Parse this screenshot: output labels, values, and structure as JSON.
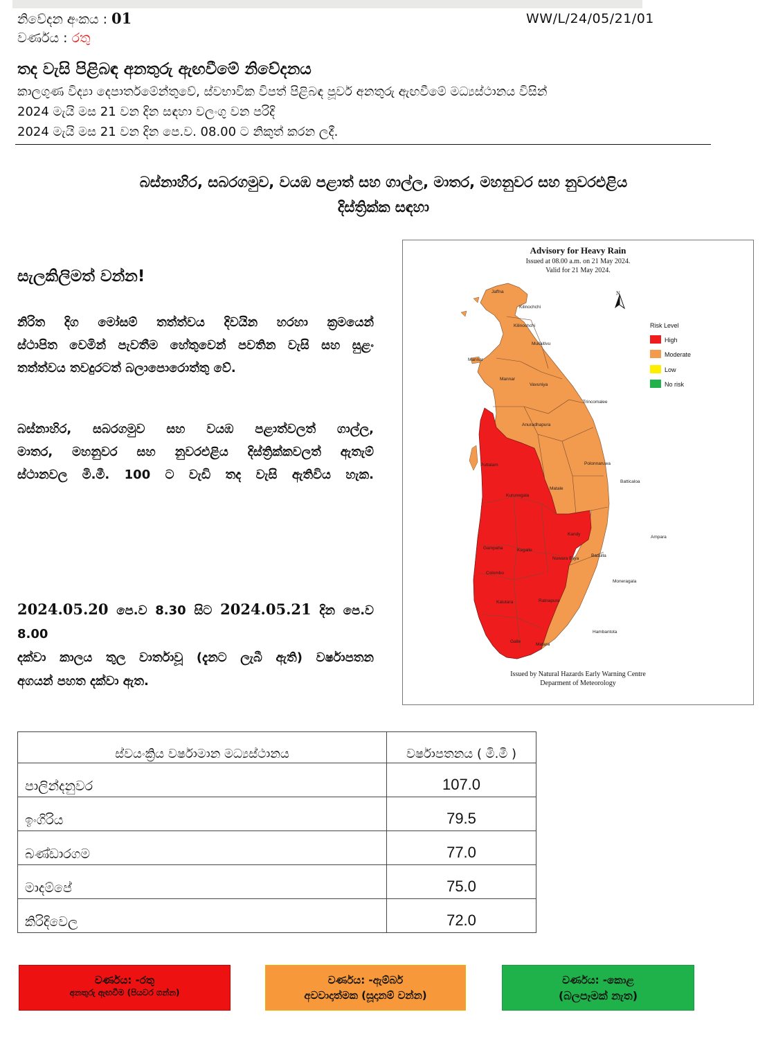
{
  "header": {
    "notice_label": "නිවේදන අංකය : ",
    "notice_number": "01",
    "color_label": "වර්ණය : ",
    "color_value": "රතු",
    "reference": "WW/L/24/05/21/01"
  },
  "title": "තද වැසි පිළිබඳ අනතුරු ඇඟවීමේ නිවේදනය",
  "subtitle_lines": [
    "කාලගුණ විද්‍යා දෙපාර්තමේන්තුවේ, ස්වභාවික විපත් පිළිබඳ  පූර්ව අනතුරු ඇඟවීමේ මධ්‍යස්ථානය විසින්",
    "2024 මැයි මස 21 වන දින සඳහා වලංගු වන පරිදි",
    "2024 මැයි මස 21 වන දින පෙ.ව. 08.00 ට නිකුත් කරන ලදී."
  ],
  "districts_line1": "බස්නාහිර, සබරගමුව, වයඹ පළාත් සහ ගාල්ල,  මාතර, මහනුවර සහ නුවරඑළිය",
  "districts_line2": "දිස්ත්‍රික්ක සඳහා",
  "alert": "සැලකිලිමත් වන්න!",
  "paragraph1": [
    "නිරිත දිග මෝසම් තත්ත්වය දිවයින හරහා ක්‍රමයෙන්",
    "ස්ථාපිත වෙමින් පැවතීම හේතුවෙන් පවතින වැසි සහ සුළං",
    "තත්ත්වය තවදුරටත් බලාපොරොත්තු වේ."
  ],
  "paragraph2": [
    "බස්නාහිර,  සබරගමුව සහ  වයඹ පළාත්වලත් ගාල්ල,",
    "මාතර, මහනුවර  සහ නුවරඑළිය දිස්ත්‍රික්කවලත් ඇතැම්",
    "ස්ථානවල මි.මී. 100 ට වැඩි තද වැසි ඇතිවිය හැක."
  ],
  "period": {
    "from": "2024.05.20",
    "from_time": " පෙ.ව 8.30 සිට ",
    "to": "2024.05.21",
    "to_time": " දින පෙ.ව 8.00",
    "line2": "දක්වා කාලය තුල වාර්තාවූ (දැනට ලැබී ඇති)  වර්ෂාපතන",
    "line3": "අගයන් පහත දක්වා ඇත."
  },
  "map": {
    "title": "Advisory for Heavy Rain",
    "issued": "Issued at 08.00 a.m. on 21 May 2024.",
    "valid": "Valid for 21 May 2024.",
    "north": "N",
    "legend_title": "Risk Level",
    "legend": [
      {
        "label": "High",
        "color": "#ee1c1c"
      },
      {
        "label": "Moderate",
        "color": "#f29a4e"
      },
      {
        "label": "Low",
        "color": "#ffee00"
      },
      {
        "label": "No risk",
        "color": "#22b14c"
      }
    ],
    "footer1": "Issued by Natural Hazards Early Warning Centre",
    "footer2": "Deparment of Meteorology",
    "place_labels": {
      "jaffna": "Jaffna",
      "kilinochchi": "Kilinochchi",
      "mullaitivu": "Mullaitivu",
      "mannar": "Mannar",
      "vavuniya": "Vavuniya",
      "trincomalee": "Trincomalee",
      "anuradhapura": "Anuradhapura",
      "polonnaruwa": "Polonnaruwa",
      "puttalam": "Puttalam",
      "batticaloa": "Batticaloa",
      "kurunegala": "Kurunegala",
      "matale": "Matale",
      "kandy": "Kandy",
      "ampara": "Ampara",
      "gampaha": "Gampaha",
      "kegalle": "Kegalle",
      "badulla": "Badulla",
      "nuwara_eliya": "Nuwara Eliya",
      "colombo": "Colombo",
      "moneragala": "Moneragala",
      "kalutara": "Kalutara",
      "ratnapura": "Ratnapura",
      "hambantota": "Hambantota",
      "galle": "Galle",
      "matara": "Matara"
    }
  },
  "table": {
    "col1": "ස්වයංක්‍රිය වර්ෂාමාන මධ්‍යස්ථානය",
    "col2": "වර්ෂාපතනය ( මි.මී )",
    "rows": [
      {
        "station": "පාලින්දනුවර",
        "value": "107.0"
      },
      {
        "station": "ඉංගිරිය",
        "value": "79.5"
      },
      {
        "station": "බණ්ඩාරගම",
        "value": "77.0"
      },
      {
        "station": "මාදම්පේ",
        "value": "75.0"
      },
      {
        "station": "කිරිදිවෙල",
        "value": "72.0"
      }
    ]
  },
  "boxes": [
    {
      "line1": "වර්ණය: -රතු",
      "line2": "අනතුරු ඇඟවීම (පියවර ගන්න)",
      "color": "#ee1111"
    },
    {
      "line1": "වර්ණය: -ඇම්බර්",
      "line2": "අවවාදාත්මක  (සූදානම් වන්න)",
      "color": "#f7993a"
    },
    {
      "line1": "වර්ණය: -කොළ",
      "line2": "(බලපෑමක් නැත)",
      "color": "#1fb14a"
    }
  ]
}
